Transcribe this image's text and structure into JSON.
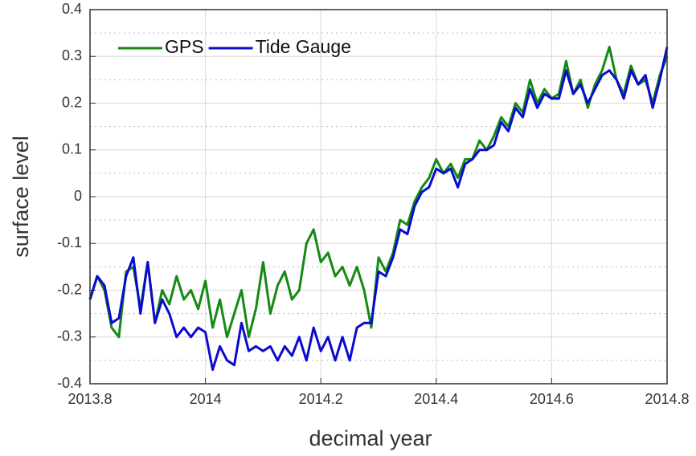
{
  "chart_data": {
    "type": "line",
    "xlabel": "decimal year",
    "ylabel": "surface level",
    "x": [
      2013.8,
      2013.8125,
      2013.825,
      2013.8375,
      2013.85,
      2013.8625,
      2013.875,
      2013.8875,
      2013.9,
      2013.9125,
      2013.925,
      2013.9375,
      2013.95,
      2013.9625,
      2013.975,
      2013.9875,
      2014,
      2014.0125,
      2014.025,
      2014.0375,
      2014.05,
      2014.0625,
      2014.075,
      2014.0875,
      2014.1,
      2014.1125,
      2014.125,
      2014.1375,
      2014.15,
      2014.1625,
      2014.175,
      2014.1875,
      2014.2,
      2014.2125,
      2014.225,
      2014.2375,
      2014.25,
      2014.2625,
      2014.275,
      2014.2875,
      2014.3,
      2014.3125,
      2014.325,
      2014.3375,
      2014.35,
      2014.3625,
      2014.375,
      2014.3875,
      2014.4,
      2014.4125,
      2014.425,
      2014.4375,
      2014.45,
      2014.4625,
      2014.475,
      2014.4875,
      2014.5,
      2014.5125,
      2014.525,
      2014.5375,
      2014.55,
      2014.5625,
      2014.575,
      2014.5875,
      2014.6,
      2014.6125,
      2014.625,
      2014.6375,
      2014.65,
      2014.6625,
      2014.675,
      2014.6875,
      2014.7,
      2014.7125,
      2014.725,
      2014.7375,
      2014.75,
      2014.7625,
      2014.775,
      2014.7875,
      2014.8
    ],
    "series": [
      {
        "name": "GPS",
        "color": "#138a13",
        "values": [
          -0.22,
          -0.17,
          -0.2,
          -0.28,
          -0.3,
          -0.16,
          -0.15,
          -0.24,
          -0.14,
          -0.27,
          -0.2,
          -0.23,
          -0.17,
          -0.22,
          -0.2,
          -0.24,
          -0.18,
          -0.28,
          -0.22,
          -0.3,
          -0.25,
          -0.2,
          -0.3,
          -0.24,
          -0.14,
          -0.25,
          -0.19,
          -0.16,
          -0.22,
          -0.2,
          -0.1,
          -0.07,
          -0.14,
          -0.12,
          -0.17,
          -0.15,
          -0.19,
          -0.15,
          -0.2,
          -0.28,
          -0.13,
          -0.16,
          -0.12,
          -0.05,
          -0.06,
          -0.01,
          0.02,
          0.04,
          0.08,
          0.05,
          0.07,
          0.04,
          0.08,
          0.08,
          0.12,
          0.1,
          0.13,
          0.17,
          0.15,
          0.2,
          0.18,
          0.25,
          0.2,
          0.23,
          0.21,
          0.22,
          0.29,
          0.22,
          0.25,
          0.19,
          0.24,
          0.27,
          0.32,
          0.25,
          0.22,
          0.28,
          0.24,
          0.25,
          0.2,
          0.26,
          0.3
        ]
      },
      {
        "name": "Tide Gauge",
        "color": "#0a0ad0",
        "values": [
          -0.22,
          -0.17,
          -0.19,
          -0.27,
          -0.26,
          -0.17,
          -0.13,
          -0.25,
          -0.14,
          -0.27,
          -0.22,
          -0.25,
          -0.3,
          -0.28,
          -0.3,
          -0.28,
          -0.29,
          -0.37,
          -0.32,
          -0.35,
          -0.36,
          -0.27,
          -0.33,
          -0.32,
          -0.33,
          -0.32,
          -0.35,
          -0.32,
          -0.34,
          -0.3,
          -0.35,
          -0.28,
          -0.33,
          -0.3,
          -0.35,
          -0.3,
          -0.35,
          -0.28,
          -0.27,
          -0.27,
          -0.16,
          -0.17,
          -0.13,
          -0.07,
          -0.08,
          -0.02,
          0.01,
          0.02,
          0.06,
          0.05,
          0.06,
          0.02,
          0.07,
          0.08,
          0.1,
          0.1,
          0.11,
          0.16,
          0.14,
          0.19,
          0.17,
          0.23,
          0.19,
          0.22,
          0.21,
          0.21,
          0.27,
          0.22,
          0.24,
          0.2,
          0.23,
          0.26,
          0.27,
          0.25,
          0.21,
          0.27,
          0.24,
          0.26,
          0.19,
          0.25,
          0.32
        ]
      }
    ],
    "xlim": [
      2013.8,
      2014.8
    ],
    "xticks": [
      2013.8,
      2014,
      2014.2,
      2014.4,
      2014.6,
      2014.8
    ],
    "ylim": [
      -0.4,
      0.4
    ],
    "yticks": [
      -0.4,
      -0.3,
      -0.2,
      -0.1,
      0,
      0.1,
      0.2,
      0.3,
      0.4
    ],
    "yminorticks": [
      -0.35,
      -0.25,
      -0.15,
      -0.05,
      0.05,
      0.15,
      0.25,
      0.35
    ],
    "grid": true,
    "legend": "top-left"
  }
}
